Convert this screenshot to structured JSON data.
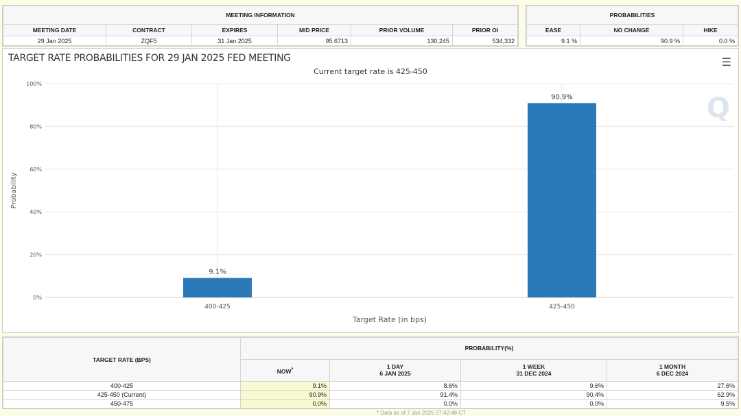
{
  "meeting_info": {
    "title": "MEETING INFORMATION",
    "headers": [
      "MEETING DATE",
      "CONTRACT",
      "EXPIRES",
      "MID PRICE",
      "PRIOR VOLUME",
      "PRIOR OI"
    ],
    "values": [
      "29 Jan 2025",
      "ZQF5",
      "31 Jan 2025",
      "95.6713",
      "130,245",
      "534,332"
    ]
  },
  "probabilities": {
    "title": "PROBABILITIES",
    "headers": [
      "EASE",
      "NO CHANGE",
      "HIKE"
    ],
    "values": [
      "9.1 %",
      "90.9 %",
      "0.0 %"
    ]
  },
  "chart": {
    "title": "TARGET RATE PROBABILITIES FOR 29 JAN 2025 FED MEETING",
    "subtitle": "Current target rate is 425-450",
    "menu_icon": "hamburger-menu-icon",
    "watermark": "Q"
  },
  "chart_data": {
    "type": "bar",
    "categories": [
      "400-425",
      "425-450"
    ],
    "values": [
      9.1,
      90.9
    ],
    "data_labels": [
      "9.1%",
      "90.9%"
    ],
    "xlabel": "Target Rate (in bps)",
    "ylabel": "Probability",
    "ylim": [
      0,
      100
    ],
    "yticks": [
      "0%",
      "20%",
      "40%",
      "60%",
      "80%",
      "100%"
    ],
    "grid": true,
    "bar_color": "#2a7ab9"
  },
  "history": {
    "rate_header": "TARGET RATE (BPS)",
    "prob_header": "PROBABILITY(%)",
    "cols": [
      {
        "l1": "NOW",
        "sup": "*"
      },
      {
        "l1": "1 DAY",
        "l2": "6 JAN 2025"
      },
      {
        "l1": "1 WEEK",
        "l2": "31 DEC 2024"
      },
      {
        "l1": "1 MONTH",
        "l2": "6 DEC 2024"
      }
    ],
    "rows": [
      {
        "rate": "400-425",
        "v": [
          "9.1%",
          "8.6%",
          "9.6%",
          "27.6%"
        ]
      },
      {
        "rate": "425-450 (Current)",
        "v": [
          "90.9%",
          "91.4%",
          "90.4%",
          "62.9%"
        ]
      },
      {
        "rate": "450-475",
        "v": [
          "0.0%",
          "0.0%",
          "0.0%",
          "9.5%"
        ]
      }
    ],
    "footnote": "* Data as of 7 Jan 2025 07:42:46 CT"
  }
}
